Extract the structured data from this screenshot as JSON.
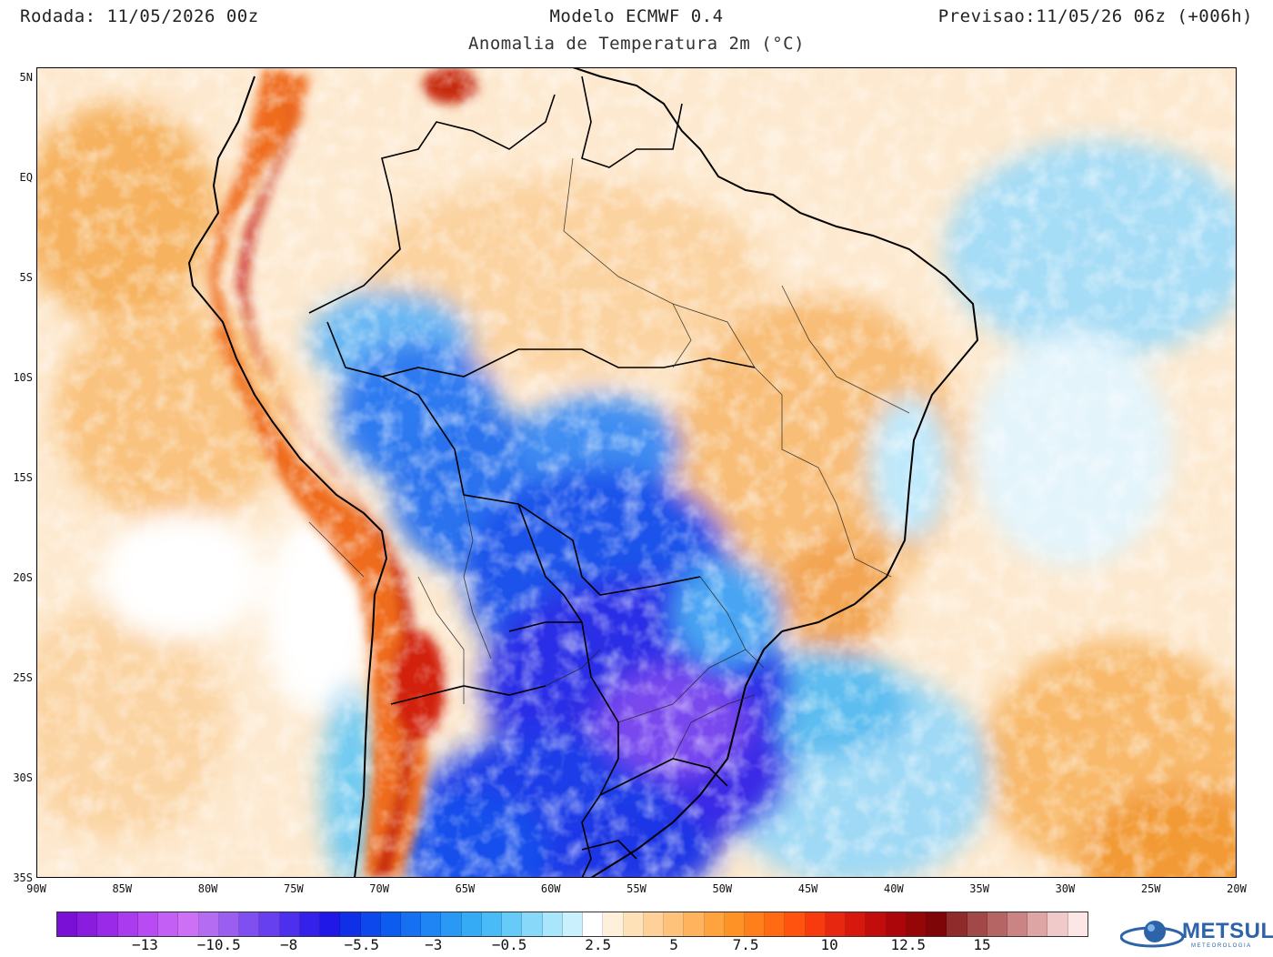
{
  "header": {
    "run_label": "Rodada: 11/05/2026 00z",
    "model_label": "Modelo ECMWF 0.4",
    "forecast_label": "Previsao:11/05/26 06z (+006h)",
    "subtitle": "Anomalia de Temperatura 2m (°C)"
  },
  "map": {
    "region": "South America",
    "lon_range": [
      -90,
      -20
    ],
    "lat_range": [
      -35,
      5.5
    ],
    "lat_ticks": [
      "5N",
      "EQ",
      "5S",
      "10S",
      "15S",
      "20S",
      "25S",
      "30S",
      "35S"
    ],
    "lon_ticks": [
      "90W",
      "85W",
      "80W",
      "75W",
      "70W",
      "65W",
      "60W",
      "55W",
      "50W",
      "45W",
      "40W",
      "35W",
      "30W",
      "25W",
      "20W"
    ]
  },
  "colorbar": {
    "colors": [
      "#7a0fd6",
      "#8a1ce0",
      "#9a2ae8",
      "#aa3bee",
      "#b84cf2",
      "#c35ff4",
      "#cc71f5",
      "#b46cf2",
      "#9a5ff0",
      "#7f4ff0",
      "#6640ef",
      "#4d30ee",
      "#3522ea",
      "#1f18e6",
      "#1030e8",
      "#0d48ec",
      "#0c5cf0",
      "#1570f2",
      "#1f84f4",
      "#2a98f5",
      "#35aaf5",
      "#49bbf6",
      "#66cbf8",
      "#88d8f9",
      "#a9e5fb",
      "#c9f0fc",
      "#ffffff",
      "#fff0dc",
      "#ffe1b8",
      "#ffd199",
      "#ffc27a",
      "#ffb35c",
      "#ffa33f",
      "#ff9226",
      "#ff7f1a",
      "#ff6a12",
      "#ff530f",
      "#f73b0e",
      "#e82710",
      "#d6180f",
      "#c20d0d",
      "#ac060a",
      "#950609",
      "#7f0608",
      "#8f2b2b",
      "#a24848",
      "#b66565",
      "#ca8484",
      "#dea5a5",
      "#f0c9c9",
      "#fde6e6"
    ],
    "labels": [
      "−13",
      "−10.5",
      "−8",
      "−5.5",
      "−3",
      "−0.5",
      "2.5",
      "5",
      "7.5",
      "10",
      "12.5",
      "15"
    ],
    "label_fractions": [
      0.09,
      0.165,
      0.236,
      0.31,
      0.383,
      0.46,
      0.55,
      0.627,
      0.7,
      0.785,
      0.865,
      0.94
    ]
  },
  "logo": {
    "text": "METSUL",
    "sub": "METEOROLOGIA"
  }
}
